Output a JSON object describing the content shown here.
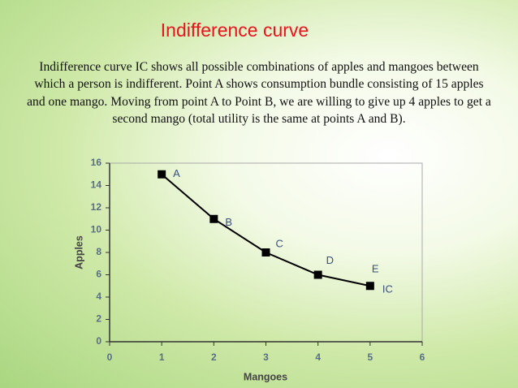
{
  "slide": {
    "title": "Indifference curve",
    "text": "Indifference curve IC shows all possible combinations of apples and mangoes between which a person is indifferent. Point A shows consumption bundle consisting of 15 apples and one mango. Moving from point A to Point B, we are willing to give up 4 apples to get a second mango (total utility is the same at points A and B)."
  },
  "chart_data": {
    "type": "line",
    "x_label": "Mangoes",
    "y_label": "Apples",
    "x": [
      1,
      2,
      3,
      4,
      5
    ],
    "series": [
      {
        "name": "IC",
        "color": "#000000",
        "values": [
          15,
          11,
          8,
          6,
          5
        ],
        "point_labels": [
          "A",
          "B",
          "C",
          "D",
          "E"
        ]
      }
    ],
    "xlim": [
      0,
      6
    ],
    "ylim": [
      0,
      16
    ],
    "xticks": [
      0,
      1,
      2,
      3,
      4,
      5,
      6
    ],
    "yticks": [
      0,
      2,
      4,
      6,
      8,
      10,
      12,
      14,
      16
    ]
  }
}
